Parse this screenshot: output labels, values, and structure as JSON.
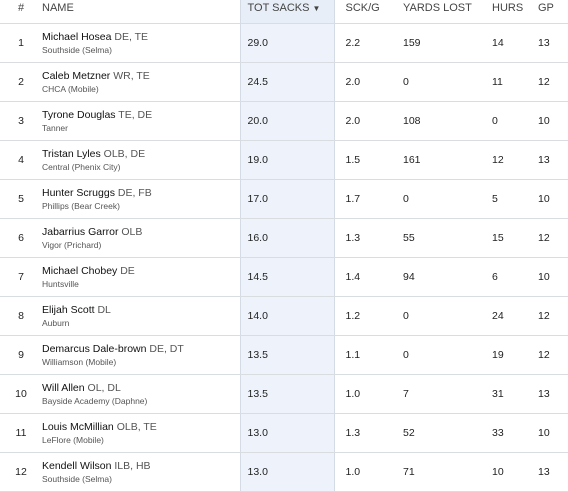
{
  "headers": {
    "rank": "#",
    "name": "NAME",
    "tot_sacks": "TOT SACKS",
    "sack_per_game": "SCK/G",
    "yards_lost": "YARDS LOST",
    "hurs": "HURS",
    "gp": "GP"
  },
  "sort_indicator": "▼",
  "rows": [
    {
      "rank": "1",
      "name": "Michael Hosea",
      "pos": "DE, TE",
      "school": "Southside (Selma)",
      "tot_sacks": "29.0",
      "sack_per_game": "2.2",
      "yards_lost": "159",
      "hurs": "14",
      "gp": "13"
    },
    {
      "rank": "2",
      "name": "Caleb Metzner",
      "pos": "WR, TE",
      "school": "CHCA (Mobile)",
      "tot_sacks": "24.5",
      "sack_per_game": "2.0",
      "yards_lost": "0",
      "hurs": "11",
      "gp": "12"
    },
    {
      "rank": "3",
      "name": "Tyrone Douglas",
      "pos": "TE, DE",
      "school": "Tanner",
      "tot_sacks": "20.0",
      "sack_per_game": "2.0",
      "yards_lost": "108",
      "hurs": "0",
      "gp": "10"
    },
    {
      "rank": "4",
      "name": "Tristan Lyles",
      "pos": "OLB, DE",
      "school": "Central (Phenix City)",
      "tot_sacks": "19.0",
      "sack_per_game": "1.5",
      "yards_lost": "161",
      "hurs": "12",
      "gp": "13"
    },
    {
      "rank": "5",
      "name": "Hunter Scruggs",
      "pos": "DE, FB",
      "school": "Phillips (Bear Creek)",
      "tot_sacks": "17.0",
      "sack_per_game": "1.7",
      "yards_lost": "0",
      "hurs": "5",
      "gp": "10"
    },
    {
      "rank": "6",
      "name": "Jabarrius Garror",
      "pos": "OLB",
      "school": "Vigor (Prichard)",
      "tot_sacks": "16.0",
      "sack_per_game": "1.3",
      "yards_lost": "55",
      "hurs": "15",
      "gp": "12"
    },
    {
      "rank": "7",
      "name": "Michael Chobey",
      "pos": "DE",
      "school": "Huntsville",
      "tot_sacks": "14.5",
      "sack_per_game": "1.4",
      "yards_lost": "94",
      "hurs": "6",
      "gp": "10"
    },
    {
      "rank": "8",
      "name": "Elijah Scott",
      "pos": "DL",
      "school": "Auburn",
      "tot_sacks": "14.0",
      "sack_per_game": "1.2",
      "yards_lost": "0",
      "hurs": "24",
      "gp": "12"
    },
    {
      "rank": "9",
      "name": "Demarcus Dale-brown",
      "pos": "DE, DT",
      "school": "Williamson (Mobile)",
      "tot_sacks": "13.5",
      "sack_per_game": "1.1",
      "yards_lost": "0",
      "hurs": "19",
      "gp": "12"
    },
    {
      "rank": "10",
      "name": "Will Allen",
      "pos": "OL, DL",
      "school": "Bayside Academy (Daphne)",
      "tot_sacks": "13.5",
      "sack_per_game": "1.0",
      "yards_lost": "7",
      "hurs": "31",
      "gp": "13"
    },
    {
      "rank": "11",
      "name": "Louis McMillian",
      "pos": "OLB, TE",
      "school": "LeFlore (Mobile)",
      "tot_sacks": "13.0",
      "sack_per_game": "1.3",
      "yards_lost": "52",
      "hurs": "33",
      "gp": "10"
    },
    {
      "rank": "12",
      "name": "Kendell Wilson",
      "pos": "ILB, HB",
      "school": "Southside (Selma)",
      "tot_sacks": "13.0",
      "sack_per_game": "1.0",
      "yards_lost": "71",
      "hurs": "10",
      "gp": "13"
    }
  ]
}
